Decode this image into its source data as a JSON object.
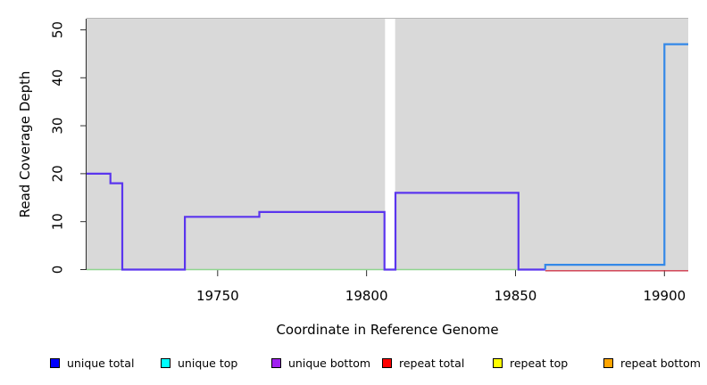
{
  "chart_data": {
    "type": "step-line",
    "title": "",
    "xlabel": "Coordinate in Reference Genome",
    "ylabel": "Read Coverage Depth",
    "xlim": [
      19706,
      19908
    ],
    "ylim": [
      0,
      52.5
    ],
    "x_ticks": [
      19750,
      19800,
      19850,
      19900
    ],
    "y_ticks": [
      0,
      10,
      20,
      30,
      40,
      50
    ],
    "grid": false,
    "panel_bg": "#d9d9d9",
    "no_data_gap": {
      "from": 19806.2,
      "to": 19809.6
    },
    "series": [
      {
        "id": "zero-baseline-green",
        "name": "zero coverage baseline (green, left portion)",
        "color": "#8fd58f",
        "points": [
          [
            19706,
            0
          ],
          [
            19860,
            0
          ]
        ]
      },
      {
        "id": "repeat-total-line",
        "name": "repeat coverage at zero (crimson, right portion)",
        "color": "#cc3344",
        "points": [
          [
            19860,
            0
          ],
          [
            19908,
            0
          ]
        ]
      },
      {
        "id": "unique-bottom-line",
        "name": "unique coverage step line (blue-violet)",
        "color": "#5a35ee",
        "points": [
          [
            19706,
            20
          ],
          [
            19714,
            20
          ],
          [
            19714,
            18
          ],
          [
            19718,
            18
          ],
          [
            19718,
            0
          ],
          [
            19739,
            0
          ],
          [
            19739,
            11
          ],
          [
            19764,
            11
          ],
          [
            19764,
            12
          ],
          [
            19806,
            12
          ],
          [
            19806,
            0
          ],
          [
            19809.7,
            0
          ],
          [
            19809.7,
            16
          ],
          [
            19851,
            16
          ],
          [
            19851,
            0
          ],
          [
            19860,
            0
          ]
        ]
      },
      {
        "id": "unique-total-line",
        "name": "unique coverage step line (light blue, right)",
        "color": "#3388e8",
        "points": [
          [
            19860,
            0
          ],
          [
            19860,
            1
          ],
          [
            19900,
            1
          ],
          [
            19900,
            47
          ],
          [
            19908,
            47
          ]
        ]
      }
    ],
    "legend_position": "bottom"
  },
  "legend": {
    "items": [
      {
        "label": "unique total",
        "color": "#0000ff"
      },
      {
        "label": "unique top",
        "color": "#00ffff"
      },
      {
        "label": "unique bottom",
        "color": "#a020f0"
      },
      {
        "label": "repeat total",
        "color": "#ff0000"
      },
      {
        "label": "repeat top",
        "color": "#ffff00"
      },
      {
        "label": "repeat bottom",
        "color": "#ffa500"
      }
    ]
  }
}
